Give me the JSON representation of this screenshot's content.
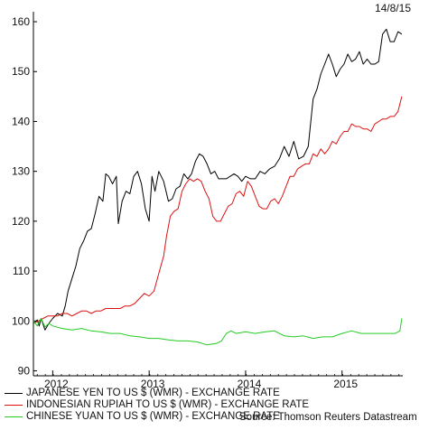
{
  "date": "14/8/15",
  "source": "Source: Thomson Reuters Datastream",
  "colors": {
    "jpy": "#000000",
    "idr": "#dd1111",
    "cny": "#22cc22",
    "axis": "#000000"
  },
  "chart_data": {
    "type": "line",
    "title": "",
    "xlabel": "",
    "ylabel": "",
    "ylim": [
      89,
      162
    ],
    "xlim": [
      2011.8,
      2015.63
    ],
    "y_ticks": [
      90,
      100,
      110,
      120,
      130,
      140,
      150,
      160
    ],
    "x_ticks": [
      {
        "label": "2012",
        "value": 2012.0
      },
      {
        "label": "2013",
        "value": 2013.0
      },
      {
        "label": "2014",
        "value": 2014.0
      },
      {
        "label": "2015",
        "value": 2015.0
      }
    ],
    "x_tick_label_positions": [
      2012.0,
      2013.0,
      2014.0,
      2015.0
    ],
    "grid": false,
    "legend_position": "bottom",
    "series": [
      {
        "name": "JAPANESE YEN TO US $ (WMR) - EXCHANGE RATE",
        "color_key": "jpy",
        "x": [
          2011.8,
          2011.84,
          2011.86,
          2011.88,
          2011.92,
          2011.96,
          2012.0,
          2012.05,
          2012.1,
          2012.13,
          2012.16,
          2012.2,
          2012.24,
          2012.28,
          2012.32,
          2012.36,
          2012.4,
          2012.44,
          2012.48,
          2012.52,
          2012.55,
          2012.58,
          2012.62,
          2012.66,
          2012.68,
          2012.72,
          2012.76,
          2012.8,
          2012.84,
          2012.88,
          2012.92,
          2012.96,
          2013.0,
          2013.03,
          2013.06,
          2013.1,
          2013.15,
          2013.2,
          2013.24,
          2013.28,
          2013.32,
          2013.36,
          2013.4,
          2013.44,
          2013.48,
          2013.52,
          2013.56,
          2013.6,
          2013.64,
          2013.68,
          2013.72,
          2013.76,
          2013.8,
          2013.84,
          2013.88,
          2013.92,
          2013.96,
          2014.0,
          2014.05,
          2014.1,
          2014.15,
          2014.2,
          2014.25,
          2014.3,
          2014.35,
          2014.4,
          2014.45,
          2014.5,
          2014.55,
          2014.6,
          2014.65,
          2014.7,
          2014.74,
          2014.78,
          2014.82,
          2014.86,
          2014.9,
          2014.94,
          2014.98,
          2015.02,
          2015.06,
          2015.1,
          2015.14,
          2015.18,
          2015.22,
          2015.26,
          2015.3,
          2015.34,
          2015.38,
          2015.42,
          2015.46,
          2015.5,
          2015.54,
          2015.58,
          2015.62
        ],
        "values": [
          99.5,
          100.2,
          99.0,
          100.5,
          98.2,
          99.5,
          100.5,
          101.5,
          101.0,
          103.0,
          106.0,
          108.5,
          111.0,
          114.5,
          116.0,
          118.0,
          118.5,
          121.5,
          125.0,
          124.0,
          129.5,
          129.0,
          127.5,
          129.0,
          119.5,
          124.0,
          126.0,
          125.5,
          129.0,
          130.0,
          127.5,
          122.5,
          120.0,
          129.0,
          126.0,
          130.0,
          128.0,
          124.0,
          124.5,
          126.5,
          127.0,
          129.5,
          128.5,
          129.5,
          132.0,
          133.5,
          133.0,
          131.5,
          129.5,
          130.0,
          128.5,
          128.5,
          128.5,
          129.0,
          129.5,
          129.0,
          128.0,
          129.0,
          128.5,
          128.5,
          130.0,
          129.5,
          130.5,
          131.0,
          132.5,
          135.0,
          133.0,
          136.0,
          132.5,
          133.0,
          135.0,
          144.5,
          146.5,
          149.5,
          151.5,
          153.5,
          151.5,
          149.0,
          150.5,
          151.5,
          153.5,
          152.0,
          152.5,
          154.0,
          151.5,
          152.5,
          151.5,
          151.5,
          152.0,
          157.5,
          158.5,
          156.0,
          156.0,
          158.0,
          157.5
        ]
      },
      {
        "name": "INDONESIAN RUPIAH TO US $ (WMR) - EXCHANGE RATE",
        "color_key": "idr",
        "x": [
          2011.8,
          2011.85,
          2011.9,
          2011.95,
          2012.0,
          2012.05,
          2012.1,
          2012.15,
          2012.2,
          2012.25,
          2012.3,
          2012.35,
          2012.4,
          2012.45,
          2012.5,
          2012.55,
          2012.6,
          2012.65,
          2012.7,
          2012.75,
          2012.8,
          2012.85,
          2012.9,
          2012.95,
          2013.0,
          2013.05,
          2013.1,
          2013.15,
          2013.18,
          2013.22,
          2013.26,
          2013.3,
          2013.34,
          2013.38,
          2013.42,
          2013.46,
          2013.5,
          2013.54,
          2013.58,
          2013.62,
          2013.66,
          2013.7,
          2013.74,
          2013.78,
          2013.82,
          2013.86,
          2013.9,
          2013.94,
          2013.98,
          2014.02,
          2014.06,
          2014.1,
          2014.14,
          2014.18,
          2014.22,
          2014.26,
          2014.3,
          2014.34,
          2014.38,
          2014.42,
          2014.46,
          2014.5,
          2014.54,
          2014.58,
          2014.62,
          2014.66,
          2014.7,
          2014.74,
          2014.78,
          2014.82,
          2014.86,
          2014.9,
          2014.94,
          2014.98,
          2015.02,
          2015.06,
          2015.1,
          2015.14,
          2015.18,
          2015.22,
          2015.26,
          2015.3,
          2015.34,
          2015.38,
          2015.42,
          2015.46,
          2015.5,
          2015.54,
          2015.58,
          2015.62
        ],
        "values": [
          99.5,
          100.0,
          100.5,
          101.0,
          101.0,
          101.0,
          101.5,
          101.5,
          101.0,
          101.5,
          102.0,
          102.0,
          101.5,
          102.0,
          102.0,
          102.5,
          102.5,
          102.5,
          102.5,
          103.0,
          103.0,
          103.5,
          104.5,
          105.5,
          105.0,
          106.0,
          109.5,
          113.0,
          117.0,
          121.0,
          122.0,
          122.5,
          126.0,
          127.5,
          128.5,
          128.0,
          128.5,
          128.0,
          126.0,
          124.5,
          121.0,
          120.0,
          120.0,
          121.5,
          123.0,
          123.5,
          125.5,
          126.0,
          125.0,
          128.0,
          127.0,
          125.0,
          123.0,
          122.5,
          122.5,
          124.0,
          124.5,
          123.5,
          125.0,
          127.0,
          129.0,
          129.0,
          130.5,
          131.0,
          131.5,
          131.5,
          133.5,
          133.0,
          134.5,
          133.5,
          134.5,
          136.0,
          135.5,
          137.0,
          138.0,
          138.0,
          139.5,
          139.0,
          139.0,
          138.5,
          138.5,
          138.0,
          139.5,
          140.0,
          140.5,
          140.5,
          141.0,
          141.0,
          142.0,
          145.0
        ]
      },
      {
        "name": "CHINESE YUAN TO US $ (WMR) - EXCHANGE RATE",
        "color_key": "cny",
        "x": [
          2011.8,
          2011.84,
          2011.88,
          2011.92,
          2011.96,
          2012.0,
          2012.1,
          2012.2,
          2012.3,
          2012.4,
          2012.5,
          2012.6,
          2012.7,
          2012.8,
          2012.9,
          2013.0,
          2013.1,
          2013.2,
          2013.3,
          2013.4,
          2013.5,
          2013.6,
          2013.7,
          2013.75,
          2013.8,
          2013.85,
          2013.9,
          2014.0,
          2014.1,
          2014.2,
          2014.3,
          2014.4,
          2014.5,
          2014.6,
          2014.7,
          2014.8,
          2014.9,
          2015.0,
          2015.1,
          2015.2,
          2015.3,
          2015.4,
          2015.5,
          2015.55,
          2015.58,
          2015.6,
          2015.62
        ],
        "values": [
          100.0,
          99.0,
          100.5,
          98.8,
          99.5,
          99.0,
          98.5,
          98.2,
          98.5,
          98.0,
          97.8,
          97.5,
          97.5,
          97.0,
          96.8,
          96.5,
          96.5,
          96.2,
          96.0,
          96.0,
          95.8,
          95.2,
          95.5,
          96.0,
          97.5,
          98.0,
          97.5,
          97.8,
          97.5,
          97.8,
          98.0,
          97.0,
          96.8,
          97.0,
          96.5,
          96.8,
          96.8,
          97.5,
          98.0,
          97.5,
          97.5,
          97.5,
          97.5,
          97.5,
          97.8,
          98.0,
          100.5
        ]
      }
    ]
  }
}
